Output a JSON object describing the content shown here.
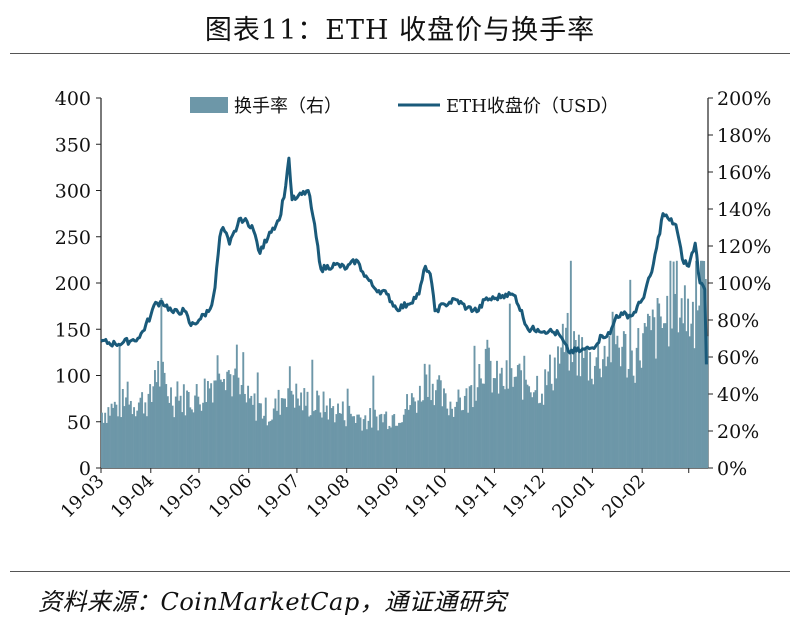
{
  "header": {
    "title": "图表11：ETH 收盘价与换手率"
  },
  "footer": {
    "source": "资料来源：CoinMarketCap，通证通研究"
  },
  "colors": {
    "bars": "#6d97a8",
    "line": "#1a5a7a",
    "axis": "#222222"
  },
  "chart_data": {
    "type": "bar+line",
    "title": "",
    "x_tick_labels": [
      "19-03",
      "19-04",
      "19-05",
      "19-06",
      "19-07",
      "19-08",
      "19-09",
      "19-10",
      "19-11",
      "19-12",
      "20-01",
      "20-02"
    ],
    "y_left": {
      "range": [
        0,
        400
      ],
      "ticks": [
        0,
        50,
        100,
        150,
        200,
        250,
        300,
        350,
        400
      ],
      "unit": "USD"
    },
    "y_right": {
      "range": [
        0,
        200
      ],
      "ticks": [
        "0%",
        "20%",
        "40%",
        "60%",
        "80%",
        "100%",
        "120%",
        "140%",
        "160%",
        "180%",
        "200%"
      ],
      "unit": "%"
    },
    "legend": {
      "placement": "top",
      "entries": [
        "换手率（右）",
        "ETH收盘价（USD）"
      ]
    },
    "series": [
      {
        "name": "ETH收盘价（USD）",
        "type": "line",
        "axis": "left",
        "points": [
          [
            "2019-03-01",
            137
          ],
          [
            "2019-03-10",
            134
          ],
          [
            "2019-03-20",
            138
          ],
          [
            "2019-03-25",
            141
          ],
          [
            "2019-04-01",
            165
          ],
          [
            "2019-04-03",
            176
          ],
          [
            "2019-04-08",
            180
          ],
          [
            "2019-04-15",
            168
          ],
          [
            "2019-04-22",
            170
          ],
          [
            "2019-04-26",
            154
          ],
          [
            "2019-05-01",
            160
          ],
          [
            "2019-05-08",
            172
          ],
          [
            "2019-05-11",
            195
          ],
          [
            "2019-05-14",
            250
          ],
          [
            "2019-05-16",
            260
          ],
          [
            "2019-05-20",
            242
          ],
          [
            "2019-05-27",
            270
          ],
          [
            "2019-06-03",
            262
          ],
          [
            "2019-06-08",
            232
          ],
          [
            "2019-06-14",
            255
          ],
          [
            "2019-06-20",
            268
          ],
          [
            "2019-06-24",
            305
          ],
          [
            "2019-06-26",
            335
          ],
          [
            "2019-06-28",
            290
          ],
          [
            "2019-07-01",
            292
          ],
          [
            "2019-07-08",
            300
          ],
          [
            "2019-07-11",
            272
          ],
          [
            "2019-07-16",
            215
          ],
          [
            "2019-07-25",
            220
          ],
          [
            "2019-08-01",
            216
          ],
          [
            "2019-08-07",
            225
          ],
          [
            "2019-08-11",
            212
          ],
          [
            "2019-08-18",
            195
          ],
          [
            "2019-08-26",
            188
          ],
          [
            "2019-09-01",
            172
          ],
          [
            "2019-09-08",
            177
          ],
          [
            "2019-09-15",
            188
          ],
          [
            "2019-09-19",
            218
          ],
          [
            "2019-09-22",
            210
          ],
          [
            "2019-09-25",
            170
          ],
          [
            "2019-10-01",
            177
          ],
          [
            "2019-10-08",
            182
          ],
          [
            "2019-10-15",
            173
          ],
          [
            "2019-10-22",
            170
          ],
          [
            "2019-10-26",
            182
          ],
          [
            "2019-11-01",
            183
          ],
          [
            "2019-11-08",
            188
          ],
          [
            "2019-11-14",
            186
          ],
          [
            "2019-11-22",
            150
          ],
          [
            "2019-11-28",
            150
          ],
          [
            "2019-12-05",
            148
          ],
          [
            "2019-12-11",
            145
          ],
          [
            "2019-12-17",
            126
          ],
          [
            "2019-12-25",
            127
          ],
          [
            "2020-01-01",
            130
          ],
          [
            "2020-01-07",
            143
          ],
          [
            "2020-01-12",
            145
          ],
          [
            "2020-01-16",
            165
          ],
          [
            "2020-01-20",
            166
          ],
          [
            "2020-01-26",
            165
          ],
          [
            "2020-02-01",
            182
          ],
          [
            "2020-02-07",
            212
          ],
          [
            "2020-02-10",
            238
          ],
          [
            "2020-02-14",
            275
          ],
          [
            "2020-02-18",
            268
          ],
          [
            "2020-02-22",
            263
          ],
          [
            "2020-02-26",
            226
          ],
          [
            "2020-03-01",
            218
          ],
          [
            "2020-03-05",
            243
          ],
          [
            "2020-03-08",
            200
          ],
          [
            "2020-03-11",
            193
          ],
          [
            "2020-03-12",
            112
          ]
        ]
      },
      {
        "name": "换手率（右）",
        "type": "bar",
        "axis": "right",
        "note": "daily bars, approx. values in %",
        "points": [
          [
            "2019-03",
            31
          ],
          [
            "2019-03-15",
            36
          ],
          [
            "2019-04",
            38
          ],
          [
            "2019-04-03",
            56
          ],
          [
            "2019-04-15",
            38
          ],
          [
            "2019-05",
            40
          ],
          [
            "2019-05-10",
            50
          ],
          [
            "2019-05-14",
            63
          ],
          [
            "2019-05-25",
            42
          ],
          [
            "2019-06",
            36
          ],
          [
            "2019-06-15",
            30
          ],
          [
            "2019-06-26",
            47
          ],
          [
            "2019-07",
            38
          ],
          [
            "2019-07-15",
            35
          ],
          [
            "2019-08",
            30
          ],
          [
            "2019-08-15",
            27
          ],
          [
            "2019-09",
            30
          ],
          [
            "2019-09-15",
            40
          ],
          [
            "2019-09-19",
            55
          ],
          [
            "2019-10",
            35
          ],
          [
            "2019-10-15",
            38
          ],
          [
            "2019-10-25",
            62
          ],
          [
            "2019-11",
            48
          ],
          [
            "2019-11-20",
            50
          ],
          [
            "2019-12",
            45
          ],
          [
            "2019-12-15",
            70
          ],
          [
            "2020-01",
            58
          ],
          [
            "2020-01-15",
            72
          ],
          [
            "2020-01-25",
            60
          ],
          [
            "2020-02",
            70
          ],
          [
            "2020-02-15",
            82
          ],
          [
            "2020-02-20",
            100
          ],
          [
            "2020-03",
            85
          ],
          [
            "2020-03-10",
            95
          ]
        ]
      }
    ]
  }
}
